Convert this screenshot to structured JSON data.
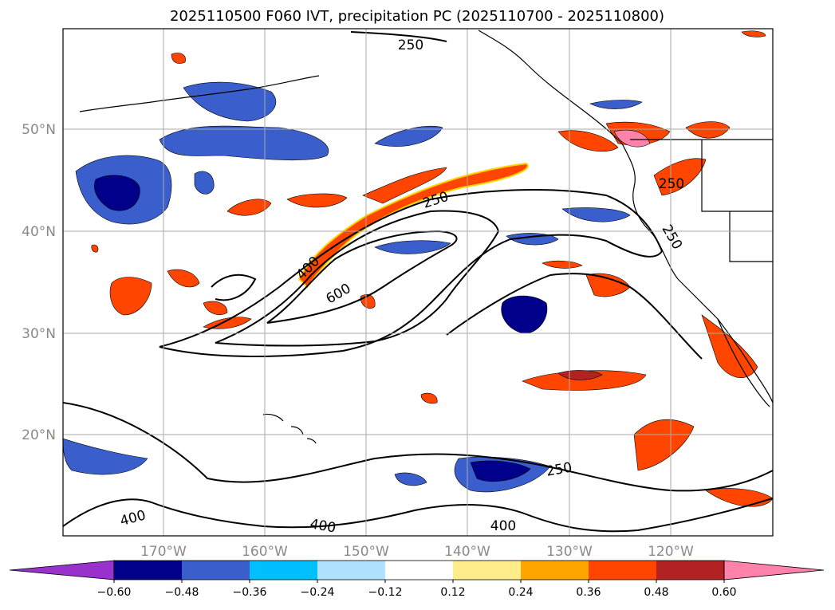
{
  "title": "2025110500 F060 IVT, precipitation PC (2025110700 - 2025110800)",
  "map": {
    "lat_labels": [
      "50°N",
      "40°N",
      "30°N",
      "20°N"
    ],
    "lon_labels": [
      "170°W",
      "160°W",
      "150°W",
      "140°W",
      "130°W",
      "120°W"
    ],
    "gridline_color": "#aaaaaa",
    "land_color": "#ffffff",
    "coast_color": "#000000"
  },
  "ivt_contours": {
    "labels": [
      "250",
      "250",
      "250",
      "250",
      "250",
      "400",
      "400",
      "400",
      "400",
      "600"
    ]
  },
  "colorbar": {
    "ticks": [
      "−0.60",
      "−0.48",
      "−0.36",
      "−0.24",
      "−0.12",
      "0.12",
      "0.24",
      "0.36",
      "0.48",
      "0.60"
    ],
    "colors": [
      "#9932cc",
      "#00008b",
      "#3a5fcd",
      "#00bfff",
      "#b0e2ff",
      "#ffffff",
      "#ffec8b",
      "#ffa500",
      "#ff4500",
      "#b22222",
      "#ff82ab"
    ]
  }
}
